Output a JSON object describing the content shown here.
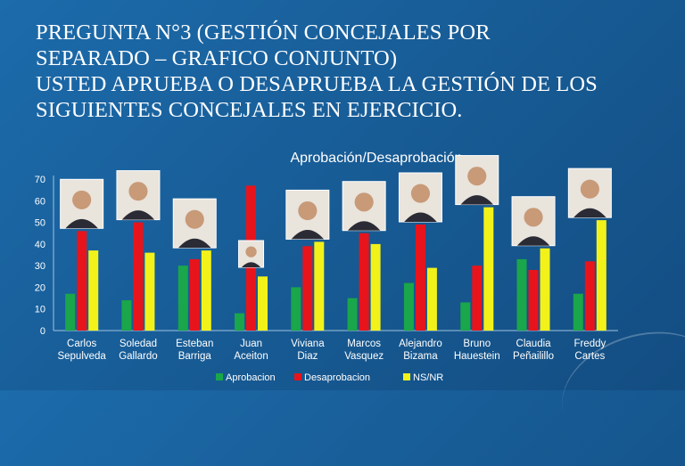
{
  "title_lines": [
    "PREGUNTA N°3 (GESTIÓN CONCEJALES POR",
    "SEPARADO – GRAFICO CONJUNTO)",
    "USTED APRUEBA O DESAPRUEBA LA GESTIÓN DE LOS",
    "SIGUIENTES CONCEJALES EN EJERCICIO."
  ],
  "colors": {
    "background": "#1a5f9a",
    "Aprobacion": "#1aa64a",
    "Desaprobacion": "#e8141c",
    "NS/NR": "#f2f21a",
    "text": "#ffffff"
  },
  "chart_data": {
    "type": "bar",
    "title": "Aprobación/Desaprobación",
    "categories": [
      [
        "Carlos",
        "Sepulveda"
      ],
      [
        "Soledad",
        "Gallardo"
      ],
      [
        "Esteban",
        "Barriga"
      ],
      [
        "Juan",
        "Aceiton"
      ],
      [
        "Viviana",
        "Diaz"
      ],
      [
        "Marcos",
        "Vasquez"
      ],
      [
        "Alejandro",
        "Bizama"
      ],
      [
        "Bruno",
        "Hauestein"
      ],
      [
        "Claudia",
        "Peñailillo"
      ],
      [
        "Freddy",
        "Cartes"
      ]
    ],
    "series": [
      {
        "name": "Aprobacion",
        "values": [
          17,
          14,
          30,
          8,
          20,
          15,
          22,
          13,
          33,
          17
        ]
      },
      {
        "name": "Desaprobacion",
        "values": [
          46,
          50,
          33,
          67,
          39,
          45,
          49,
          30,
          28,
          32
        ]
      },
      {
        "name": "NS/NR",
        "values": [
          37,
          36,
          37,
          25,
          41,
          40,
          29,
          57,
          38,
          51
        ]
      }
    ],
    "yticks": [
      0,
      10,
      20,
      30,
      40,
      50,
      60,
      70
    ],
    "ylim": [
      0,
      70
    ],
    "grid": false,
    "legend": "bottom",
    "photos": [
      true,
      true,
      true,
      true,
      true,
      true,
      true,
      true,
      true,
      true
    ]
  }
}
